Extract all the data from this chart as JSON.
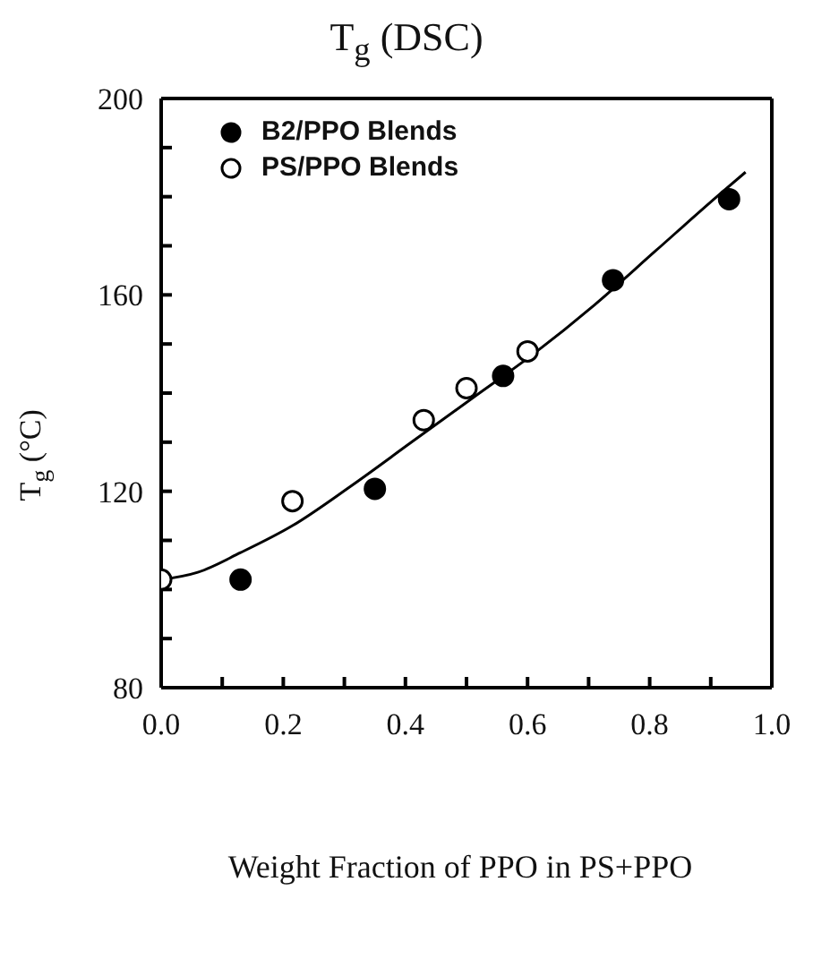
{
  "chart_data": {
    "type": "scatter",
    "title": "T$_{g}$ (DSC)",
    "xlabel": "Weight Fraction of PPO in PS+PPO",
    "ylabel": "T$_{g}$ (°C)",
    "xlim": [
      0,
      1
    ],
    "xticks": [
      {
        "value": 0,
        "label": "0.0"
      },
      {
        "value": 0.1,
        "label": null
      },
      {
        "value": 0.2,
        "label": "0.2"
      },
      {
        "value": 0.3,
        "label": null
      },
      {
        "value": 0.4,
        "label": "0.4"
      },
      {
        "value": 0.5,
        "label": null
      },
      {
        "value": 0.6,
        "label": "0.6"
      },
      {
        "value": 0.7,
        "label": null
      },
      {
        "value": 0.8,
        "label": "0.8"
      },
      {
        "value": 0.9,
        "label": null
      },
      {
        "value": 1.0,
        "label": "1.0"
      }
    ],
    "ylim": [
      80,
      200
    ],
    "yticks": [
      80,
      {
        "value": 90,
        "label": null
      },
      {
        "value": 100,
        "label": null
      },
      {
        "value": 110,
        "label": null
      },
      120,
      {
        "value": 130,
        "label": null
      },
      {
        "value": 140,
        "label": null
      },
      {
        "value": 150,
        "label": null
      },
      160,
      {
        "value": 170,
        "label": null
      },
      {
        "value": 180,
        "label": null
      },
      {
        "value": 190,
        "label": null
      },
      200
    ],
    "grid": false,
    "legend": "top left",
    "marker": "circle",
    "series": [
      {
        "name": "B2/PPO Blends",
        "color": "#000000",
        "x": [
          0.13,
          0.35,
          0.56,
          0.74,
          0.93
        ],
        "values": [
          102,
          120.5,
          143.5,
          163,
          179.5
        ]
      },
      {
        "name": "PS/PPO Blends",
        "color": "#ffffff",
        "x": [
          0,
          0.215,
          0.43,
          0.5,
          0.6
        ],
        "values": [
          102,
          118,
          134.5,
          141,
          148.5
        ]
      },
      {
        "type": "line",
        "color": "#000000",
        "marker": "none",
        "x": [
          0,
          0.06,
          0.13,
          0.215,
          0.31,
          0.41,
          0.51,
          0.61,
          0.71,
          0.81,
          0.91,
          0.957
        ],
        "values": [
          102,
          103.5,
          107.5,
          113,
          121,
          130,
          139,
          148,
          158,
          169,
          180,
          185
        ]
      }
    ]
  }
}
